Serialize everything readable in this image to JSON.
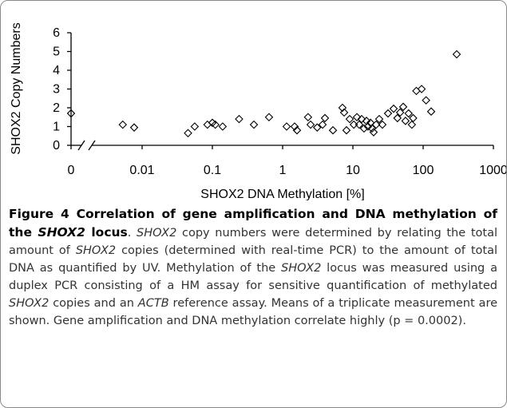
{
  "chart_data": {
    "type": "scatter",
    "x_label": "SHOX2 DNA Methylation [%]",
    "y_label": "SHOX2 Copy Numbers",
    "x": [
      0,
      0.0053,
      0.0077,
      0.045,
      0.056,
      0.085,
      0.1,
      0.11,
      0.14,
      0.24,
      0.39,
      0.64,
      1.14,
      1.48,
      1.6,
      2.3,
      2.5,
      3.1,
      3.7,
      4.0,
      5.2,
      7.1,
      7.5,
      8.1,
      9.0,
      10.3,
      11.4,
      12.3,
      13.3,
      14.4,
      15.6,
      16.4,
      17.8,
      18.7,
      19.7,
      21.4,
      23.7,
      26.3,
      31.6,
      38,
      43,
      47,
      52,
      56,
      62,
      69,
      72,
      80,
      95,
      110,
      130,
      300
    ],
    "values": [
      1.7,
      1.1,
      0.95,
      0.65,
      1.0,
      1.1,
      1.2,
      1.1,
      1.0,
      1.4,
      1.1,
      1.5,
      1.0,
      1.0,
      0.8,
      1.5,
      1.1,
      0.95,
      1.1,
      1.45,
      0.8,
      2.0,
      1.75,
      0.8,
      1.4,
      1.1,
      1.5,
      1.1,
      1.4,
      0.9,
      1.3,
      1.0,
      1.2,
      0.9,
      0.7,
      1.1,
      1.4,
      1.1,
      1.7,
      1.95,
      1.45,
      1.75,
      2.05,
      1.3,
      1.7,
      1.1,
      1.45,
      2.9,
      3.0,
      2.4,
      1.8,
      4.85
    ],
    "color": "#000000",
    "marker": "diamond",
    "x_log": true,
    "x_break": true,
    "xlim": [
      0,
      1000
    ],
    "xticks": [
      0,
      0.01,
      0.1,
      1,
      10,
      100,
      1000
    ],
    "ylim": [
      0,
      6
    ],
    "yticks": [
      0,
      1,
      2,
      3,
      4,
      5,
      6
    ]
  },
  "caption": [
    "Figure 4 Correlation of gene amplification and DNA methylation of the ",
    "SHOX2",
    " locus",
    ". ",
    "SHOX2",
    " copy numbers were determined by relating the total amount of ",
    "SHOX2",
    " copies (determined with real-time PCR) to the amount of total DNA as quantified by UV. Methylation of the ",
    "SHOX2",
    " locus was measured using a duplex PCR consisting of a HM assay for sensitive quantification of methylated ",
    "SHOX2",
    " copies and an ",
    "ACTB",
    " reference assay. Means of a triplicate measurement are shown. Gene amplification and DNA methylation correlate highly (p = 0.0002)."
  ]
}
